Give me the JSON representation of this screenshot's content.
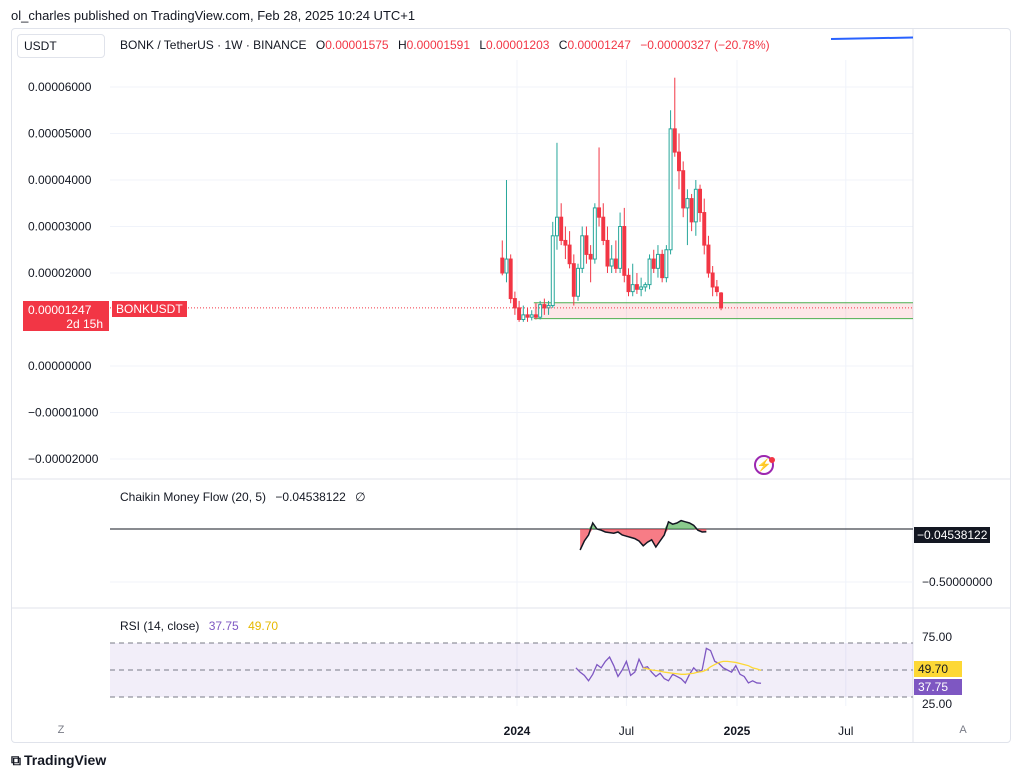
{
  "header": {
    "text": "ol_charles published on TradingView.com, Feb 28, 2025 10:24 UTC+1"
  },
  "symbol_box": "USDT",
  "legend": {
    "title": "BONK / TetherUS · 1W · BINANCE",
    "o_label": "O",
    "o_val": "0.00001575",
    "h_label": "H",
    "h_val": "0.00001591",
    "l_label": "L",
    "l_val": "0.00001203",
    "c_label": "C",
    "c_val": "0.00001247",
    "change": "−0.00000327 (−20.78%)"
  },
  "price_tag": {
    "value": "0.00001247",
    "countdown": "2d 15h",
    "symbol": "BONKUSDT"
  },
  "cmf": {
    "title": "Chaikin Money Flow (20, 5)",
    "value": "−0.04538122",
    "icon": "∅",
    "axis_labels": [
      "−0.04538122",
      "−0.50000000"
    ]
  },
  "rsi": {
    "title": "RSI (14, close)",
    "value": "37.75",
    "ma_value": "49.70",
    "levels": [
      "75.00",
      "25.00"
    ]
  },
  "footer": {
    "logo": "TradingView",
    "btn_left": "Z",
    "btn_right": "A"
  },
  "colors": {
    "up": "#26a69a",
    "down": "#f23645",
    "rsi": "#7e57c2",
    "rsi_ma": "#fdd835",
    "accent": "#2962ff"
  },
  "chart_data": {
    "type": "candlestick",
    "timeframe": "1W",
    "y_ticks": [
      "0.00006000",
      "0.00005000",
      "0.00004000",
      "0.00003000",
      "0.00002000",
      "0.00000000",
      "−0.00001000",
      "−0.00002000"
    ],
    "y_tick_values": [
      6e-05,
      5e-05,
      4e-05,
      3e-05,
      2e-05,
      0.0,
      -1e-05,
      -2e-05
    ],
    "x_ticks": [
      "2024",
      "Jul",
      "2025",
      "Jul"
    ],
    "x_tick_dates": [
      "2024-01-01",
      "2024-07-01",
      "2025-01-01",
      "2025-07-01"
    ],
    "first_date": "2023-12-04",
    "support_zone": [
      1.02e-05,
      1.36e-05
    ],
    "candles": [
      [
        2.32e-05,
        2.7e-05,
        1.95e-05,
        2e-05
      ],
      [
        2e-05,
        4e-05,
        1.8e-05,
        2.3e-05
      ],
      [
        2.3e-05,
        2.4e-05,
        1.35e-05,
        1.45e-05
      ],
      [
        1.45e-05,
        1.6e-05,
        1.1e-05,
        1.25e-05
      ],
      [
        1.25e-05,
        1.4e-05,
        9.5e-06,
        1e-05
      ],
      [
        1e-05,
        1.3e-05,
        9.5e-06,
        1.1e-05
      ],
      [
        1.1e-05,
        1.25e-05,
        9.5e-06,
        1.05e-05
      ],
      [
        1.05e-05,
        1.2e-05,
        9.8e-06,
        1.1e-05
      ],
      [
        1.1e-05,
        1.35e-05,
        1e-05,
        1.05e-05
      ],
      [
        1.05e-05,
        1.4e-05,
        1e-05,
        1.32e-05
      ],
      [
        1.32e-05,
        1.45e-05,
        1.1e-05,
        1.25e-05
      ],
      [
        1.25e-05,
        1.4e-05,
        1.1e-05,
        1.3e-05
      ],
      [
        1.3e-05,
        3.1e-05,
        1.25e-05,
        2.8e-05
      ],
      [
        2.8e-05,
        4.8e-05,
        2.5e-05,
        3.2e-05
      ],
      [
        3.2e-05,
        3.5e-05,
        2.6e-05,
        2.7e-05
      ],
      [
        2.7e-05,
        3e-05,
        2.3e-05,
        2.6e-05
      ],
      [
        2.6e-05,
        2.9e-05,
        2.1e-05,
        2.2e-05
      ],
      [
        2.2e-05,
        2.4e-05,
        1.3e-05,
        1.5e-05
      ],
      [
        1.5e-05,
        2.2e-05,
        1.4e-05,
        2.1e-05
      ],
      [
        2.1e-05,
        3e-05,
        2e-05,
        2.8e-05
      ],
      [
        2.8e-05,
        3e-05,
        2.2e-05,
        2.4e-05
      ],
      [
        2.4e-05,
        2.6e-05,
        1.8e-05,
        2.3e-05
      ],
      [
        2.3e-05,
        3.5e-05,
        2.2e-05,
        3.4e-05
      ],
      [
        3.4e-05,
        4.7e-05,
        3e-05,
        3.2e-05
      ],
      [
        3.2e-05,
        3.5e-05,
        2.6e-05,
        2.7e-05
      ],
      [
        2.7e-05,
        3e-05,
        2e-05,
        2.15e-05
      ],
      [
        2.15e-05,
        2.6e-05,
        2e-05,
        2.3e-05
      ],
      [
        2.3e-05,
        2.7e-05,
        2e-05,
        2.1e-05
      ],
      [
        2.1e-05,
        3.3e-05,
        2e-05,
        3e-05
      ],
      [
        3e-05,
        3.4e-05,
        1.8e-05,
        1.95e-05
      ],
      [
        1.95e-05,
        2.1e-05,
        1.5e-05,
        1.6e-05
      ],
      [
        1.6e-05,
        2.2e-05,
        1.5e-05,
        1.75e-05
      ],
      [
        1.75e-05,
        2e-05,
        1.55e-05,
        1.65e-05
      ],
      [
        1.65e-05,
        1.9e-05,
        1.5e-05,
        1.7e-05
      ],
      [
        1.7e-05,
        1.8e-05,
        1.6e-05,
        1.75e-05
      ],
      [
        1.75e-05,
        2.4e-05,
        1.65e-05,
        2.3e-05
      ],
      [
        2.3e-05,
        2.5e-05,
        2e-05,
        2.1e-05
      ],
      [
        2.1e-05,
        2.6e-05,
        1.9e-05,
        2.4e-05
      ],
      [
        2.4e-05,
        2.5e-05,
        1.8e-05,
        1.9e-05
      ],
      [
        1.9e-05,
        2.6e-05,
        1.8e-05,
        2.5e-05
      ],
      [
        2.5e-05,
        5.5e-05,
        2.4e-05,
        5.1e-05
      ],
      [
        5.1e-05,
        6.2e-05,
        4.5e-05,
        4.6e-05
      ],
      [
        4.6e-05,
        5e-05,
        3.8e-05,
        4.2e-05
      ],
      [
        4.2e-05,
        4.4e-05,
        3.2e-05,
        3.4e-05
      ],
      [
        3.4e-05,
        3.8e-05,
        2.6e-05,
        3.6e-05
      ],
      [
        3.6e-05,
        3.7e-05,
        2.9e-05,
        3.1e-05
      ],
      [
        3.1e-05,
        4e-05,
        2.8e-05,
        3.8e-05
      ],
      [
        3.8e-05,
        3.9e-05,
        3.1e-05,
        3.3e-05
      ],
      [
        3.3e-05,
        3.6e-05,
        2.4e-05,
        2.6e-05
      ],
      [
        2.6e-05,
        2.8e-05,
        1.9e-05,
        2e-05
      ],
      [
        2e-05,
        2.15e-05,
        1.5e-05,
        1.7e-05
      ],
      [
        1.7e-05,
        1.85e-05,
        1.5e-05,
        1.6e-05
      ],
      [
        1.57e-05,
        1.59e-05,
        1.2e-05,
        1.25e-05
      ]
    ],
    "cmf_values": [
      -0.35,
      -0.2,
      -0.1,
      0.1,
      0.0,
      -0.02,
      -0.05,
      -0.06,
      -0.07,
      -0.05,
      -0.1,
      -0.12,
      -0.14,
      -0.16,
      -0.2,
      -0.28,
      -0.22,
      -0.18,
      -0.3,
      -0.2,
      -0.1,
      0.12,
      0.08,
      0.1,
      0.14,
      0.12,
      0.1,
      0.06,
      -0.02,
      -0.05,
      -0.045
    ],
    "cmf_ylim": [
      -0.9,
      0.4
    ],
    "cmf_start_date": "2024-04-15",
    "rsi_values": [
      52,
      48,
      45,
      40,
      46,
      55,
      52,
      58,
      62,
      54,
      44,
      50,
      58,
      45,
      48,
      60,
      52,
      53,
      48,
      44,
      47,
      42,
      40,
      46,
      44,
      42,
      38,
      46,
      52,
      48,
      50,
      70,
      68,
      58,
      56,
      52,
      50,
      48,
      54,
      46,
      44,
      38,
      40,
      38,
      37.75
    ],
    "rsi_start_date": "2024-04-08",
    "rsi_ma_values": [
      null,
      null,
      null,
      null,
      null,
      null,
      null,
      null,
      null,
      null,
      null,
      null,
      null,
      null,
      null,
      null,
      52,
      51,
      50,
      49.5,
      49,
      48,
      47.5,
      47,
      46.5,
      46,
      46,
      46.5,
      47,
      48,
      48.5,
      50,
      53,
      55,
      57,
      58,
      58,
      57.5,
      57,
      56,
      55,
      54,
      52,
      51,
      49.7
    ],
    "rsi_ylim": [
      25,
      75
    ],
    "rsi_mid": 50
  }
}
